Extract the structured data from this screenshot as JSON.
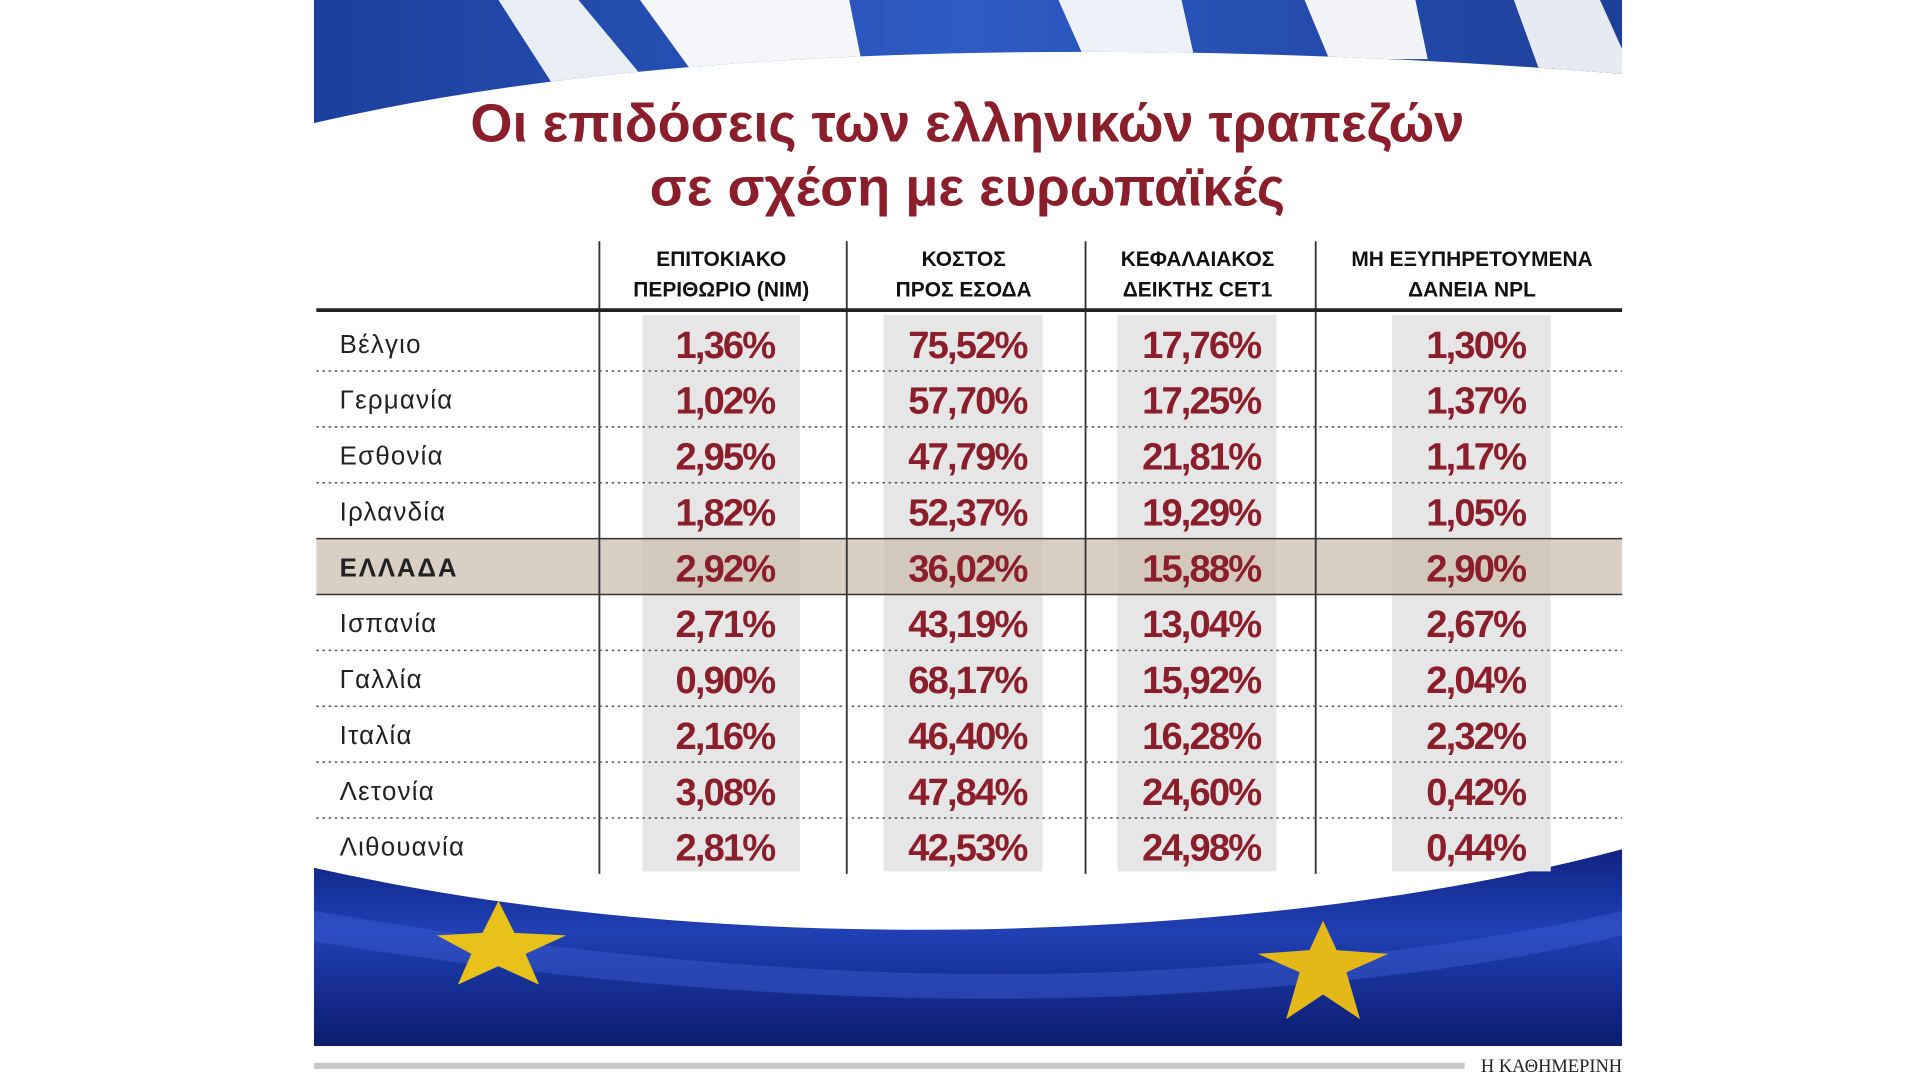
{
  "header": {
    "title_lines": [
      "Οι επιδόσεις των ελληνικών τραπεζών",
      "σε σχέση με ευρωπαϊκές"
    ]
  },
  "table": {
    "columns": [
      [
        "ΕΠΙΤΟΚΙΑΚΟ",
        "ΠΕΡΙΘΩΡΙΟ (NIM)"
      ],
      [
        "ΚΟΣΤΟΣ",
        "ΠΡΟΣ ΕΣΟΔΑ"
      ],
      [
        "ΚΕΦΑΛΑΙΑΚΟΣ",
        "ΔΕΙΚΤΗΣ CET1"
      ],
      [
        "ΜΗ ΕΞΥΠΗΡΕΤΟΥΜΕΝΑ",
        "ΔΑΝΕΙΑ NPL"
      ]
    ],
    "rows": [
      [
        "Βέλγιο",
        "1,36%",
        "75,52%",
        "17,76%",
        "1,30%"
      ],
      [
        "Γερμανία",
        "1,02%",
        "57,70%",
        "17,25%",
        "1,37%"
      ],
      [
        "Εσθονία",
        "2,95%",
        "47,79%",
        "21,81%",
        "1,17%"
      ],
      [
        "Ιρλανδία",
        "1,82%",
        "52,37%",
        "19,29%",
        "1,05%"
      ],
      [
        "ΕΛΛΑΔΑ",
        "2,92%",
        "36,02%",
        "15,88%",
        "2,90%"
      ],
      [
        "Ισπανία",
        "2,71%",
        "43,19%",
        "13,04%",
        "2,67%"
      ],
      [
        "Γαλλία",
        "0,90%",
        "68,17%",
        "15,92%",
        "2,04%"
      ],
      [
        "Ιταλία",
        "2,16%",
        "46,40%",
        "16,28%",
        "2,32%"
      ],
      [
        "Λετονία",
        "3,08%",
        "47,84%",
        "24,60%",
        "0,42%"
      ],
      [
        "Λιθουανία",
        "2,81%",
        "42,53%",
        "24,98%",
        "0,44%"
      ]
    ],
    "highlight_row": 4
  },
  "footer": {
    "source": "Η ΚΑΘΗΜΕΡΙΝΗ"
  }
}
